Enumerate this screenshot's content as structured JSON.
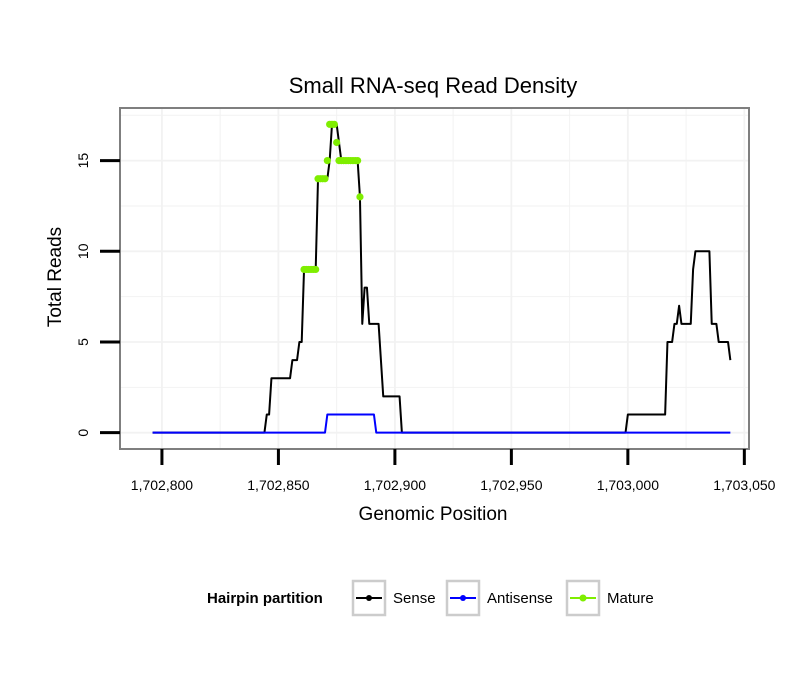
{
  "chart_data": {
    "type": "line",
    "title": "Small RNA-seq Read Density",
    "xlabel": "Genomic Position",
    "ylabel": "Total Reads",
    "xlim": [
      1702782,
      1703052
    ],
    "ylim": [
      -0.9,
      17.9
    ],
    "x_ticks": [
      1702800,
      1702850,
      1702900,
      1702950,
      1703000,
      1703050
    ],
    "x_tick_labels": [
      "1,702,800",
      "1,702,850",
      "1,702,900",
      "1,702,950",
      "1,703,000",
      "1,703,050"
    ],
    "y_ticks": [
      0,
      5,
      10,
      15
    ],
    "y_tick_labels": [
      "0",
      "5",
      "10",
      "15"
    ],
    "grid": true,
    "legend": {
      "title": "Hairpin partition",
      "position": "bottom",
      "entries": [
        {
          "label": "Sense",
          "color": "#000000"
        },
        {
          "label": "Antisense",
          "color": "#0000ff"
        },
        {
          "label": "Mature",
          "color": "#7fee00"
        }
      ]
    },
    "series": [
      {
        "name": "Sense",
        "color": "#000000",
        "style": "line",
        "points": [
          [
            1702796,
            0
          ],
          [
            1702844,
            0
          ],
          [
            1702845,
            1
          ],
          [
            1702846,
            1
          ],
          [
            1702847,
            3
          ],
          [
            1702855,
            3
          ],
          [
            1702856,
            4
          ],
          [
            1702858,
            4
          ],
          [
            1702859,
            5
          ],
          [
            1702860,
            5
          ],
          [
            1702861,
            9
          ],
          [
            1702866,
            9
          ],
          [
            1702867,
            14
          ],
          [
            1702871,
            14
          ],
          [
            1702872,
            15
          ],
          [
            1702873,
            17
          ],
          [
            1702875,
            17
          ],
          [
            1702876,
            16
          ],
          [
            1702877,
            15
          ],
          [
            1702884,
            15
          ],
          [
            1702885,
            13
          ],
          [
            1702886,
            6
          ],
          [
            1702887,
            8
          ],
          [
            1702888,
            8
          ],
          [
            1702889,
            6
          ],
          [
            1702893,
            6
          ],
          [
            1702894,
            4
          ],
          [
            1702895,
            2
          ],
          [
            1702902,
            2
          ],
          [
            1702903,
            0
          ],
          [
            1702999,
            0
          ],
          [
            1703000,
            1
          ],
          [
            1703016,
            1
          ],
          [
            1703017,
            5
          ],
          [
            1703019,
            5
          ],
          [
            1703020,
            6
          ],
          [
            1703021,
            6
          ],
          [
            1703022,
            7
          ],
          [
            1703023,
            6
          ],
          [
            1703027,
            6
          ],
          [
            1703028,
            9
          ],
          [
            1703029,
            10
          ],
          [
            1703035,
            10
          ],
          [
            1703036,
            6
          ],
          [
            1703038,
            6
          ],
          [
            1703039,
            5
          ],
          [
            1703043,
            5
          ],
          [
            1703044,
            4
          ]
        ]
      },
      {
        "name": "Antisense",
        "color": "#0000ff",
        "style": "line",
        "points": [
          [
            1702796,
            0
          ],
          [
            1702870,
            0
          ],
          [
            1702871,
            1
          ],
          [
            1702891,
            1
          ],
          [
            1702892,
            0
          ],
          [
            1703044,
            0
          ]
        ]
      },
      {
        "name": "Mature",
        "color": "#7fee00",
        "style": "points",
        "points": [
          [
            1702861,
            9
          ],
          [
            1702862,
            9
          ],
          [
            1702863,
            9
          ],
          [
            1702864,
            9
          ],
          [
            1702865,
            9
          ],
          [
            1702866,
            9
          ],
          [
            1702867,
            14
          ],
          [
            1702868,
            14
          ],
          [
            1702869,
            14
          ],
          [
            1702870,
            14
          ],
          [
            1702871,
            15
          ],
          [
            1702872,
            17
          ],
          [
            1702873,
            17
          ],
          [
            1702874,
            17
          ],
          [
            1702875,
            16
          ],
          [
            1702876,
            15
          ],
          [
            1702877,
            15
          ],
          [
            1702878,
            15
          ],
          [
            1702879,
            15
          ],
          [
            1702880,
            15
          ],
          [
            1702881,
            15
          ],
          [
            1702882,
            15
          ],
          [
            1702883,
            15
          ],
          [
            1702884,
            15
          ],
          [
            1702885,
            13
          ]
        ]
      }
    ]
  }
}
